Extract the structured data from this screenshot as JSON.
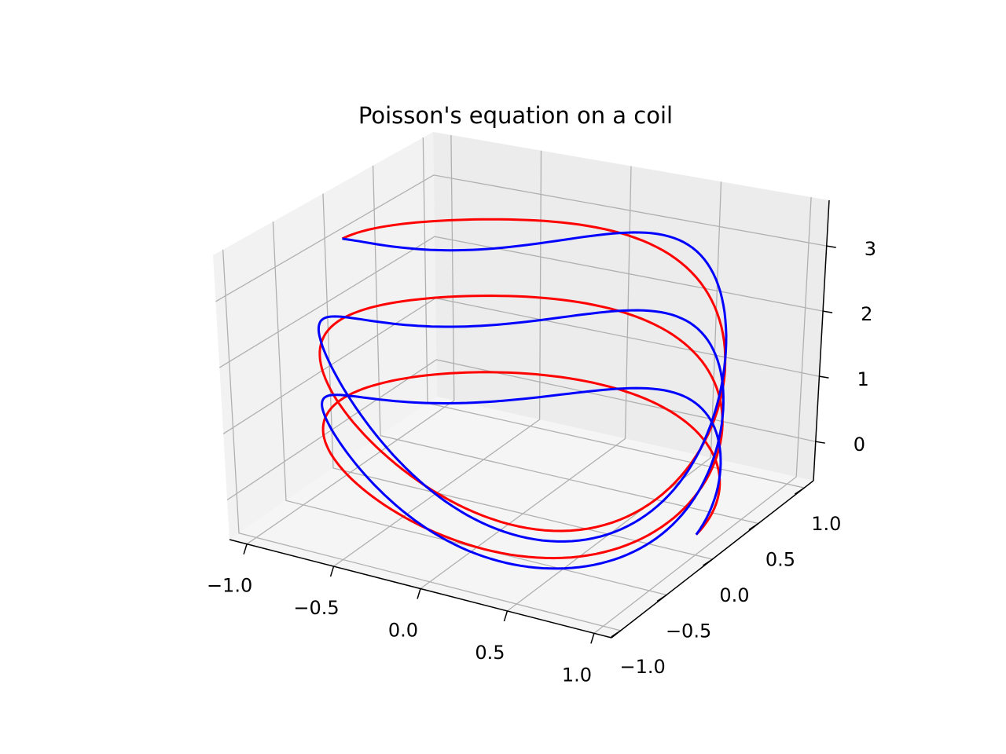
{
  "chart_data": {
    "type": "line",
    "projection": "3d",
    "title": "Poisson's equation on a coil",
    "xlabel": "",
    "ylabel": "",
    "zlabel": "",
    "xlim": [
      -1.1,
      1.1
    ],
    "ylim": [
      -1.1,
      1.1
    ],
    "zlim": [
      -0.6,
      3.7
    ],
    "x_ticks": [
      -1.0,
      -0.5,
      0.0,
      0.5,
      1.0
    ],
    "y_ticks": [
      -1.0,
      -0.5,
      0.0,
      0.5,
      1.0
    ],
    "z_ticks": [
      0,
      1,
      2,
      3
    ],
    "x_tick_labels": [
      "−1.0",
      "−0.5",
      "0.0",
      "0.5",
      "1.0"
    ],
    "y_tick_labels": [
      "−1.0",
      "−0.5",
      "0.0",
      "0.5",
      "1.0"
    ],
    "z_tick_labels": [
      "0",
      "1",
      "2",
      "3"
    ],
    "grid": true,
    "series": [
      {
        "kind": "coil",
        "color": "#ff0000",
        "turns": 2.5,
        "radius": 1.0,
        "z_range": [
          0,
          3.14
        ],
        "t_range": [
          0,
          15.708
        ],
        "equation": "x = cos(t), y = sin(t), z = t / 5"
      },
      {
        "kind": "solution",
        "color": "#0000ff",
        "t_range": [
          0,
          15.708
        ],
        "equation": "x = cos(t), y = sin(t), z = t / 5 + sin(2t) * 0.5 (approx.)"
      }
    ]
  },
  "colors": {
    "pane_left": "#f2f2f2",
    "pane_back": "#ececec",
    "pane_floor": "#f5f5f5",
    "grid": "#b0b0b0",
    "axis": "#000000"
  }
}
